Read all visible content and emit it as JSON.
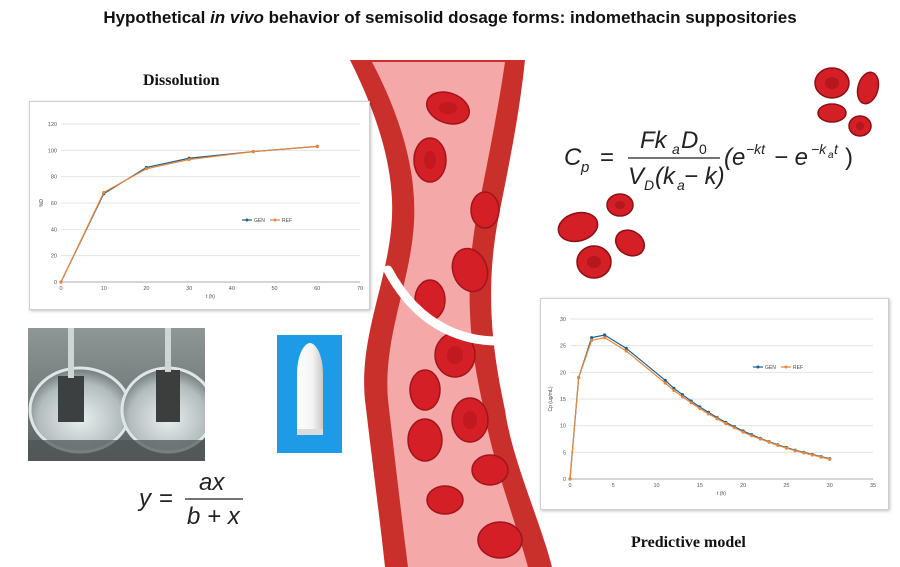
{
  "title": {
    "prefix": "Hypothetical ",
    "italic": "in vivo",
    "suffix": " behavior of semisolid dosage forms: indomethacin suppositories"
  },
  "labels": {
    "dissolution": "Dissolution",
    "predictive": "Predictive model"
  },
  "formulas": {
    "cp": {
      "lhs": "C",
      "lhs_sub": "p",
      "eq": "=",
      "num": "Fk",
      "num_sub": "a",
      "num_d": "D",
      "num_d_sub": "0",
      "den": "V",
      "den_sub": "D",
      "den_paren": "(k",
      "den_ka_sub": "a",
      "den_rest": " − k)",
      "exp": "(e",
      "exp1": "−kt",
      "minus": " − e",
      "exp2": "−k",
      "exp2_sub": "a",
      "exp2_t": "t",
      "close": ")"
    },
    "y": {
      "lhs": "y",
      "eq": "=",
      "num": "ax",
      "den": "b + x"
    }
  },
  "colors": {
    "gen": "#1f5f8b",
    "ref": "#e8873a",
    "vessel": "#c9302c",
    "vessel_inner": "#f4a9a8",
    "cell": "#d41f26",
    "arrow": "#ffffff"
  },
  "chart_data": [
    {
      "type": "line",
      "title": "Dissolution",
      "xlabel": "t (h)",
      "ylabel": "%D",
      "xlim": [
        0,
        70
      ],
      "ylim": [
        0,
        120
      ],
      "xticks": [
        0,
        10,
        20,
        30,
        40,
        50,
        60,
        70
      ],
      "yticks": [
        0,
        20,
        40,
        60,
        80,
        100,
        120
      ],
      "grid": true,
      "legend": "right",
      "series": [
        {
          "name": "GEN",
          "x": [
            0,
            10,
            20,
            30,
            45,
            60
          ],
          "y": [
            0,
            67,
            87,
            94,
            99,
            103
          ]
        },
        {
          "name": "REF",
          "x": [
            0,
            10,
            20,
            30,
            45,
            60
          ],
          "y": [
            0,
            68,
            86,
            93,
            99,
            103
          ]
        }
      ]
    },
    {
      "type": "line",
      "title": "Predictive model",
      "xlabel": "t (h)",
      "ylabel": "Cp (ug/mL)",
      "xlim": [
        0,
        35
      ],
      "ylim": [
        0,
        30
      ],
      "xticks": [
        0,
        5,
        10,
        15,
        20,
        25,
        30,
        35
      ],
      "yticks": [
        0,
        5,
        10,
        15,
        20,
        25,
        30
      ],
      "grid": true,
      "legend": "right",
      "series": [
        {
          "name": "GEN",
          "x": [
            0,
            1,
            2.5,
            4,
            6.5,
            11,
            12,
            13,
            14,
            15,
            16,
            17,
            18,
            19,
            20,
            21,
            22,
            23,
            24,
            25,
            26,
            27,
            28,
            29,
            30
          ],
          "y": [
            0,
            19,
            26.5,
            27,
            24.5,
            18.5,
            17,
            15.8,
            14.6,
            13.5,
            12.5,
            11.5,
            10.6,
            9.8,
            9.0,
            8.3,
            7.6,
            7.0,
            6.4,
            5.9,
            5.4,
            5.0,
            4.6,
            4.2,
            3.8
          ]
        },
        {
          "name": "REF",
          "x": [
            0,
            1,
            2.5,
            4,
            6.5,
            11,
            12,
            13,
            14,
            15,
            16,
            17,
            18,
            19,
            20,
            21,
            22,
            23,
            24,
            25,
            26,
            27,
            28,
            29,
            30
          ],
          "y": [
            0,
            19,
            26,
            26.5,
            24,
            18,
            16.6,
            15.4,
            14.3,
            13.2,
            12.2,
            11.3,
            10.4,
            9.6,
            8.8,
            8.1,
            7.5,
            6.9,
            6.3,
            5.8,
            5.3,
            4.9,
            4.5,
            4.1,
            3.7
          ]
        }
      ]
    }
  ]
}
